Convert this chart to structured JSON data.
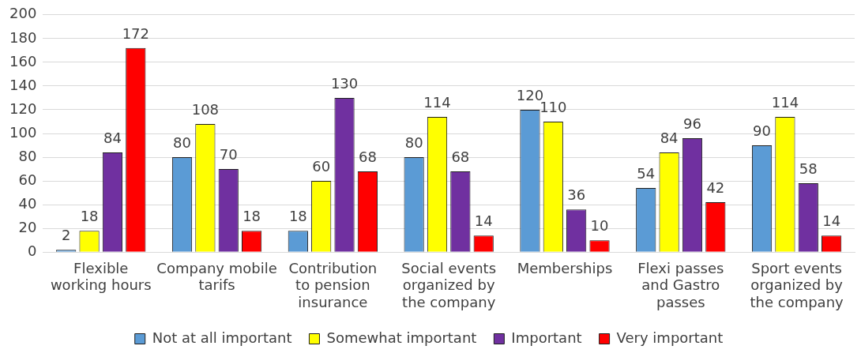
{
  "chart_data": {
    "type": "bar",
    "categories": [
      "Flexible working hours",
      "Company mobile tarifs",
      "Contribution to pension insurance",
      "Social events organized by the company",
      "Memberships",
      "Flexi passes and Gastro passes",
      "Sport events organized by the company"
    ],
    "series": [
      {
        "name": "Not at all important",
        "color": "#5b9bd5",
        "values": [
          2,
          80,
          18,
          80,
          120,
          54,
          90
        ]
      },
      {
        "name": "Somewhat important",
        "color": "#ffff00",
        "values": [
          18,
          108,
          60,
          114,
          110,
          84,
          114
        ]
      },
      {
        "name": "Important",
        "color": "#7030a0",
        "values": [
          84,
          70,
          130,
          68,
          36,
          96,
          58
        ]
      },
      {
        "name": "Very important",
        "color": "#ff0000",
        "values": [
          172,
          18,
          68,
          14,
          10,
          42,
          14
        ]
      }
    ],
    "ylim": [
      0,
      200
    ],
    "yticks": [
      0,
      20,
      40,
      60,
      80,
      100,
      120,
      140,
      160,
      180,
      200
    ],
    "grid": "y",
    "legend": "bottom",
    "data_labels": true
  }
}
